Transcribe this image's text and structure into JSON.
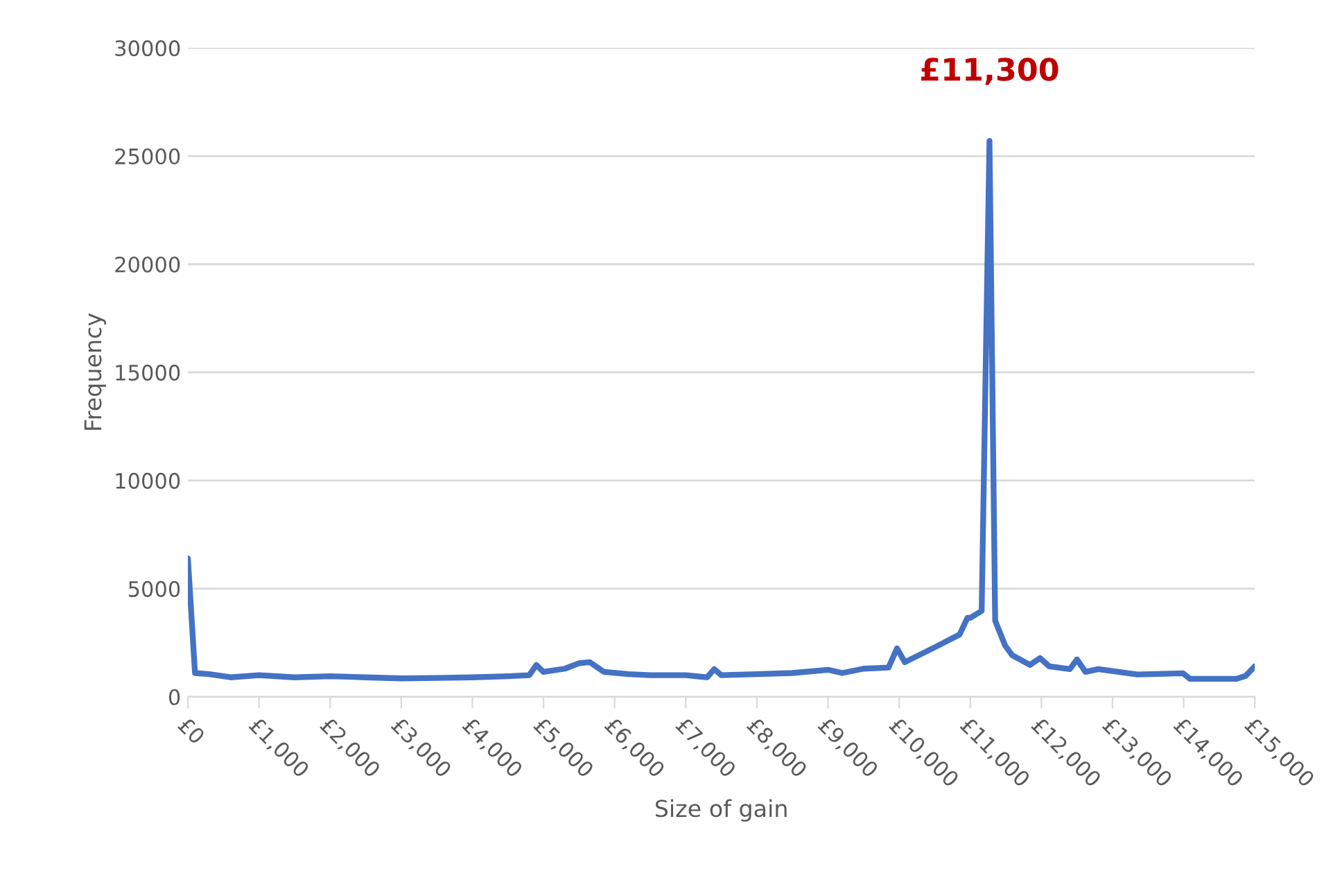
{
  "chart_data": {
    "type": "line",
    "xlabel": "Size of gain",
    "ylabel": "Frequency",
    "annotations": [
      "£11,300"
    ],
    "x": [
      0,
      100,
      300,
      600,
      1000,
      1500,
      2000,
      2500,
      3000,
      3500,
      4000,
      4500,
      4800,
      4900,
      5000,
      5300,
      5500,
      5650,
      5850,
      6200,
      6500,
      7000,
      7300,
      7400,
      7500,
      8000,
      8500,
      9000,
      9200,
      9500,
      9850,
      9970,
      10080,
      10550,
      10850,
      10960,
      11000,
      11160,
      11270,
      11350,
      11490,
      11590,
      11840,
      11980,
      12110,
      12400,
      12500,
      12620,
      12800,
      13350,
      13990,
      14090,
      14740,
      14870,
      15000
    ],
    "series": [
      {
        "color": "#4472c4",
        "values": [
          6400,
          1100,
          1050,
          900,
          1000,
          900,
          950,
          900,
          850,
          870,
          900,
          950,
          1000,
          1470,
          1150,
          1300,
          1550,
          1600,
          1150,
          1050,
          1000,
          1000,
          900,
          1280,
          1000,
          1050,
          1100,
          1250,
          1100,
          1300,
          1350,
          2240,
          1600,
          2370,
          2880,
          3650,
          3650,
          3970,
          25700,
          3520,
          2370,
          1920,
          1470,
          1790,
          1410,
          1280,
          1730,
          1150,
          1280,
          1030,
          1090,
          830,
          830,
          960,
          1410
        ]
      }
    ],
    "xlim": [
      0,
      15000
    ],
    "ylim": [
      0,
      30000
    ],
    "xticks": [
      {
        "value": 0,
        "label": "£0"
      },
      {
        "value": 1000,
        "label": "£1,000"
      },
      {
        "value": 2000,
        "label": "£2,000"
      },
      {
        "value": 3000,
        "label": "£3,000"
      },
      {
        "value": 4000,
        "label": "£4,000"
      },
      {
        "value": 5000,
        "label": "£5,000"
      },
      {
        "value": 6000,
        "label": "£6,000"
      },
      {
        "value": 7000,
        "label": "£7,000"
      },
      {
        "value": 8000,
        "label": "£8,000"
      },
      {
        "value": 9000,
        "label": "£9,000"
      },
      {
        "value": 10000,
        "label": "£10,000"
      },
      {
        "value": 11000,
        "label": "£11,000"
      },
      {
        "value": 12000,
        "label": "£12,000"
      },
      {
        "value": 13000,
        "label": "£13,000"
      },
      {
        "value": 14000,
        "label": "£14,000"
      },
      {
        "value": 15000,
        "label": "£15,000"
      }
    ],
    "yticks": [
      0,
      5000,
      10000,
      15000,
      20000,
      25000,
      30000
    ],
    "grid": "y",
    "legend": false,
    "marker": "none",
    "line_style": "solid"
  }
}
